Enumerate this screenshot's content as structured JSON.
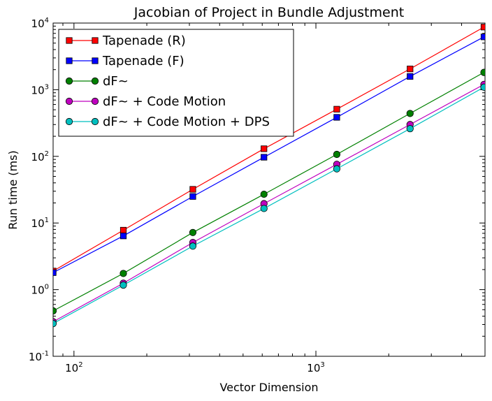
{
  "chart_data": {
    "type": "line",
    "title": "Jacobian of Project in Bundle Adjustment",
    "xlabel": "Vector Dimension",
    "ylabel": "Run time (ms)",
    "xscale": "log",
    "yscale": "log",
    "xlim": [
      82,
      5000
    ],
    "ylim": [
      0.1,
      10000
    ],
    "legend_position": "upper-left",
    "x_ticks": [
      {
        "value": 100,
        "base": "10",
        "exp": "2"
      },
      {
        "value": 1000,
        "base": "10",
        "exp": "3"
      }
    ],
    "y_ticks": [
      {
        "value": 0.1,
        "base": "10",
        "exp": "-1"
      },
      {
        "value": 1,
        "base": "10",
        "exp": "0"
      },
      {
        "value": 10,
        "base": "10",
        "exp": "1"
      },
      {
        "value": 100,
        "base": "10",
        "exp": "2"
      },
      {
        "value": 1000,
        "base": "10",
        "exp": "3"
      },
      {
        "value": 10000,
        "base": "10",
        "exp": "4"
      }
    ],
    "x": [
      82,
      160,
      310,
      610,
      1220,
      2450,
      4950
    ],
    "series": [
      {
        "name": "Tapenade (R)",
        "color": "#ff0000",
        "marker": "square",
        "values": [
          1.9,
          7.8,
          32,
          130,
          510,
          2050,
          8700
        ]
      },
      {
        "name": "Tapenade (F)",
        "color": "#0000ff",
        "marker": "square",
        "values": [
          1.8,
          6.4,
          25,
          97,
          385,
          1580,
          6200
        ]
      },
      {
        "name": "dF~",
        "color": "#008000",
        "marker": "circle",
        "values": [
          0.48,
          1.75,
          7.2,
          27,
          107,
          440,
          1820
        ]
      },
      {
        "name": "dF~ + Code Motion",
        "color": "#bf00bf",
        "marker": "circle",
        "values": [
          0.33,
          1.25,
          5.1,
          19.5,
          76,
          300,
          1200
        ]
      },
      {
        "name": "dF~ + Code Motion + DPS",
        "color": "#00bfbf",
        "marker": "circle",
        "values": [
          0.31,
          1.17,
          4.5,
          16.5,
          65,
          260,
          1090
        ]
      }
    ]
  }
}
